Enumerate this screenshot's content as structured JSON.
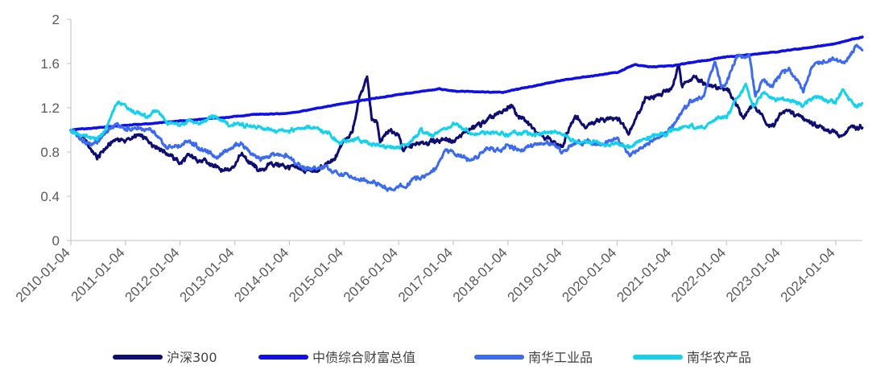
{
  "chart_data": {
    "type": "line",
    "title": "",
    "xlabel": "",
    "ylabel": "",
    "ylim": [
      0,
      2
    ],
    "yticks": [
      "0",
      "0.4",
      "0.8",
      "1.2",
      "1.6",
      "2"
    ],
    "xlim": [
      "2010-01-04",
      "2024-06-30"
    ],
    "xticks": [
      "2010-01-04",
      "2011-01-04",
      "2012-01-04",
      "2013-01-04",
      "2014-01-04",
      "2015-01-04",
      "2016-01-04",
      "2017-01-04",
      "2018-01-04",
      "2019-01-04",
      "2020-01-04",
      "2021-01-04",
      "2022-01-04",
      "2023-01-04",
      "2024-01-04"
    ],
    "grid": false,
    "legend_position": "bottom",
    "series": [
      {
        "name": "沪深300",
        "color": "#0d0d73",
        "points": [
          [
            "2010-01-04",
            1.0
          ],
          [
            "2010-04-01",
            0.92
          ],
          [
            "2010-07-01",
            0.74
          ],
          [
            "2010-08-15",
            0.82
          ],
          [
            "2010-11-01",
            0.92
          ],
          [
            "2011-01-04",
            0.9
          ],
          [
            "2011-04-01",
            0.95
          ],
          [
            "2011-07-01",
            0.88
          ],
          [
            "2011-10-01",
            0.8
          ],
          [
            "2012-01-04",
            0.7
          ],
          [
            "2012-03-01",
            0.76
          ],
          [
            "2012-06-01",
            0.72
          ],
          [
            "2012-09-01",
            0.66
          ],
          [
            "2012-12-01",
            0.64
          ],
          [
            "2013-01-04",
            0.7
          ],
          [
            "2013-02-15",
            0.78
          ],
          [
            "2013-04-01",
            0.72
          ],
          [
            "2013-06-25",
            0.62
          ],
          [
            "2013-09-01",
            0.7
          ],
          [
            "2014-01-04",
            0.66
          ],
          [
            "2014-04-01",
            0.64
          ],
          [
            "2014-07-01",
            0.62
          ],
          [
            "2014-09-01",
            0.68
          ],
          [
            "2014-11-01",
            0.72
          ],
          [
            "2015-01-04",
            0.92
          ],
          [
            "2015-03-01",
            0.98
          ],
          [
            "2015-04-15",
            1.28
          ],
          [
            "2015-06-08",
            1.5
          ],
          [
            "2015-07-08",
            1.1
          ],
          [
            "2015-08-15",
            1.05
          ],
          [
            "2015-09-01",
            0.88
          ],
          [
            "2015-11-01",
            1.0
          ],
          [
            "2016-01-04",
            0.96
          ],
          [
            "2016-02-01",
            0.82
          ],
          [
            "2016-04-01",
            0.86
          ],
          [
            "2016-07-01",
            0.88
          ],
          [
            "2016-11-01",
            0.92
          ],
          [
            "2017-01-04",
            0.9
          ],
          [
            "2017-04-01",
            0.98
          ],
          [
            "2017-07-01",
            1.05
          ],
          [
            "2017-11-01",
            1.14
          ],
          [
            "2018-01-25",
            1.22
          ],
          [
            "2018-03-01",
            1.14
          ],
          [
            "2018-06-01",
            1.04
          ],
          [
            "2018-10-01",
            0.92
          ],
          [
            "2019-01-04",
            0.84
          ],
          [
            "2019-03-01",
            1.06
          ],
          [
            "2019-04-15",
            1.12
          ],
          [
            "2019-06-01",
            1.02
          ],
          [
            "2019-09-01",
            1.08
          ],
          [
            "2020-01-04",
            1.12
          ],
          [
            "2020-03-20",
            0.98
          ],
          [
            "2020-07-10",
            1.28
          ],
          [
            "2020-10-01",
            1.3
          ],
          [
            "2021-01-04",
            1.38
          ],
          [
            "2021-02-18",
            1.6
          ],
          [
            "2021-03-10",
            1.42
          ],
          [
            "2021-06-01",
            1.48
          ],
          [
            "2021-09-01",
            1.4
          ],
          [
            "2021-12-01",
            1.38
          ],
          [
            "2022-01-04",
            1.38
          ],
          [
            "2022-04-27",
            1.12
          ],
          [
            "2022-07-01",
            1.22
          ],
          [
            "2022-10-31",
            1.02
          ],
          [
            "2023-01-04",
            1.14
          ],
          [
            "2023-02-01",
            1.18
          ],
          [
            "2023-05-01",
            1.12
          ],
          [
            "2023-08-01",
            1.06
          ],
          [
            "2023-10-01",
            1.02
          ],
          [
            "2024-01-04",
            0.98
          ],
          [
            "2024-02-05",
            0.92
          ],
          [
            "2024-04-01",
            1.02
          ],
          [
            "2024-06-30",
            1.02
          ]
        ]
      },
      {
        "name": "中债综合财富总值",
        "color": "#0f0fe8",
        "points": [
          [
            "2010-01-04",
            1.0
          ],
          [
            "2011-01-04",
            1.04
          ],
          [
            "2012-01-04",
            1.08
          ],
          [
            "2013-01-04",
            1.12
          ],
          [
            "2013-06-01",
            1.14
          ],
          [
            "2014-01-04",
            1.15
          ],
          [
            "2015-01-04",
            1.24
          ],
          [
            "2016-01-04",
            1.32
          ],
          [
            "2016-10-01",
            1.37
          ],
          [
            "2017-01-04",
            1.35
          ],
          [
            "2017-12-01",
            1.34
          ],
          [
            "2018-01-04",
            1.35
          ],
          [
            "2019-01-04",
            1.45
          ],
          [
            "2020-01-04",
            1.52
          ],
          [
            "2020-05-01",
            1.59
          ],
          [
            "2020-08-01",
            1.57
          ],
          [
            "2021-01-04",
            1.58
          ],
          [
            "2022-01-04",
            1.66
          ],
          [
            "2023-01-04",
            1.71
          ],
          [
            "2024-01-04",
            1.78
          ],
          [
            "2024-06-30",
            1.84
          ]
        ]
      },
      {
        "name": "南华工业品",
        "color": "#3d6bf0",
        "points": [
          [
            "2010-01-04",
            1.0
          ],
          [
            "2010-05-20",
            0.86
          ],
          [
            "2010-08-01",
            0.94
          ],
          [
            "2010-11-10",
            1.05
          ],
          [
            "2011-01-04",
            1.0
          ],
          [
            "2011-04-01",
            1.02
          ],
          [
            "2011-07-01",
            0.98
          ],
          [
            "2011-10-01",
            0.84
          ],
          [
            "2012-01-04",
            0.86
          ],
          [
            "2012-03-01",
            0.9
          ],
          [
            "2012-06-01",
            0.82
          ],
          [
            "2012-09-01",
            0.76
          ],
          [
            "2012-12-01",
            0.84
          ],
          [
            "2013-01-04",
            0.86
          ],
          [
            "2013-02-15",
            0.88
          ],
          [
            "2013-06-25",
            0.72
          ],
          [
            "2013-09-15",
            0.78
          ],
          [
            "2014-01-04",
            0.76
          ],
          [
            "2014-03-15",
            0.66
          ],
          [
            "2014-06-01",
            0.64
          ],
          [
            "2014-09-01",
            0.66
          ],
          [
            "2014-12-01",
            0.6
          ],
          [
            "2015-01-04",
            0.6
          ],
          [
            "2015-04-01",
            0.56
          ],
          [
            "2015-06-01",
            0.55
          ],
          [
            "2015-09-01",
            0.5
          ],
          [
            "2015-11-25",
            0.45
          ],
          [
            "2016-01-04",
            0.48
          ],
          [
            "2016-03-01",
            0.5
          ],
          [
            "2016-04-21",
            0.58
          ],
          [
            "2016-06-01",
            0.56
          ],
          [
            "2016-09-01",
            0.64
          ],
          [
            "2016-11-11",
            0.82
          ],
          [
            "2017-01-04",
            0.8
          ],
          [
            "2017-05-01",
            0.72
          ],
          [
            "2017-08-15",
            0.84
          ],
          [
            "2017-11-01",
            0.82
          ],
          [
            "2018-01-04",
            0.86
          ],
          [
            "2018-04-01",
            0.82
          ],
          [
            "2018-07-01",
            0.86
          ],
          [
            "2018-10-01",
            0.88
          ],
          [
            "2018-12-25",
            0.8
          ],
          [
            "2019-01-04",
            0.8
          ],
          [
            "2019-04-01",
            0.88
          ],
          [
            "2019-07-01",
            0.9
          ],
          [
            "2019-10-01",
            0.88
          ],
          [
            "2020-01-04",
            0.92
          ],
          [
            "2020-04-01",
            0.78
          ],
          [
            "2020-07-01",
            0.86
          ],
          [
            "2020-10-01",
            0.92
          ],
          [
            "2021-01-04",
            1.02
          ],
          [
            "2021-03-01",
            1.14
          ],
          [
            "2021-05-12",
            1.26
          ],
          [
            "2021-08-01",
            1.3
          ],
          [
            "2021-10-19",
            1.62
          ],
          [
            "2021-12-01",
            1.38
          ],
          [
            "2022-01-04",
            1.42
          ],
          [
            "2022-03-08",
            1.66
          ],
          [
            "2022-06-08",
            1.68
          ],
          [
            "2022-07-15",
            1.28
          ],
          [
            "2022-09-01",
            1.44
          ],
          [
            "2022-11-01",
            1.4
          ],
          [
            "2023-01-04",
            1.52
          ],
          [
            "2023-03-01",
            1.56
          ],
          [
            "2023-05-31",
            1.36
          ],
          [
            "2023-08-01",
            1.58
          ],
          [
            "2023-10-01",
            1.62
          ],
          [
            "2024-01-04",
            1.64
          ],
          [
            "2024-03-01",
            1.6
          ],
          [
            "2024-05-20",
            1.76
          ],
          [
            "2024-06-30",
            1.72
          ]
        ]
      },
      {
        "name": "南华农产品",
        "color": "#14d2ee",
        "points": [
          [
            "2010-01-04",
            1.0
          ],
          [
            "2010-04-01",
            0.94
          ],
          [
            "2010-07-01",
            0.92
          ],
          [
            "2010-09-01",
            1.02
          ],
          [
            "2010-11-11",
            1.26
          ],
          [
            "2011-01-04",
            1.22
          ],
          [
            "2011-03-01",
            1.16
          ],
          [
            "2011-06-01",
            1.12
          ],
          [
            "2011-08-01",
            1.18
          ],
          [
            "2011-10-15",
            1.06
          ],
          [
            "2012-01-04",
            1.04
          ],
          [
            "2012-03-01",
            1.08
          ],
          [
            "2012-05-01",
            1.06
          ],
          [
            "2012-09-01",
            1.12
          ],
          [
            "2012-12-01",
            1.04
          ],
          [
            "2013-01-04",
            1.06
          ],
          [
            "2013-06-01",
            1.02
          ],
          [
            "2013-10-01",
            1.0
          ],
          [
            "2014-01-04",
            1.0
          ],
          [
            "2014-06-01",
            1.02
          ],
          [
            "2014-10-01",
            0.96
          ],
          [
            "2014-12-01",
            0.88
          ],
          [
            "2015-01-04",
            0.9
          ],
          [
            "2015-04-01",
            0.92
          ],
          [
            "2015-07-01",
            0.88
          ],
          [
            "2015-11-15",
            0.84
          ],
          [
            "2016-01-04",
            0.84
          ],
          [
            "2016-03-01",
            0.86
          ],
          [
            "2016-06-01",
            1.0
          ],
          [
            "2016-08-01",
            0.94
          ],
          [
            "2016-11-15",
            1.02
          ],
          [
            "2017-01-04",
            1.04
          ],
          [
            "2017-03-01",
            1.02
          ],
          [
            "2017-06-01",
            0.96
          ],
          [
            "2017-09-01",
            0.98
          ],
          [
            "2018-01-04",
            0.96
          ],
          [
            "2018-04-01",
            0.98
          ],
          [
            "2018-07-01",
            0.96
          ],
          [
            "2018-10-01",
            0.98
          ],
          [
            "2019-01-04",
            0.96
          ],
          [
            "2019-05-01",
            0.88
          ],
          [
            "2019-08-01",
            0.9
          ],
          [
            "2019-11-01",
            0.86
          ],
          [
            "2020-01-04",
            0.88
          ],
          [
            "2020-04-01",
            0.84
          ],
          [
            "2020-07-01",
            0.92
          ],
          [
            "2020-10-01",
            0.96
          ],
          [
            "2021-01-04",
            0.98
          ],
          [
            "2021-05-01",
            1.04
          ],
          [
            "2021-08-01",
            1.02
          ],
          [
            "2021-11-01",
            1.1
          ],
          [
            "2022-01-04",
            1.12
          ],
          [
            "2022-03-01",
            1.26
          ],
          [
            "2022-05-15",
            1.4
          ],
          [
            "2022-07-01",
            1.22
          ],
          [
            "2022-09-01",
            1.34
          ],
          [
            "2022-12-01",
            1.28
          ],
          [
            "2023-01-04",
            1.28
          ],
          [
            "2023-04-01",
            1.26
          ],
          [
            "2023-06-01",
            1.22
          ],
          [
            "2023-09-01",
            1.3
          ],
          [
            "2023-11-01",
            1.26
          ],
          [
            "2024-01-04",
            1.26
          ],
          [
            "2024-02-20",
            1.36
          ],
          [
            "2024-04-01",
            1.28
          ],
          [
            "2024-05-15",
            1.22
          ],
          [
            "2024-06-30",
            1.24
          ]
        ]
      }
    ]
  }
}
